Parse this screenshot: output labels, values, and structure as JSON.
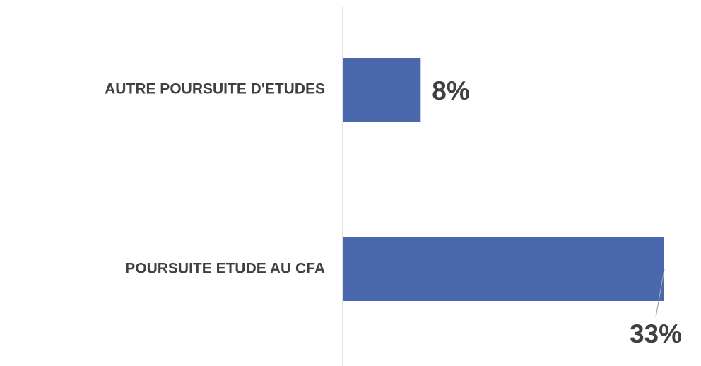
{
  "chart_data": {
    "type": "bar",
    "orientation": "horizontal",
    "categories": [
      "AUTRE POURSUITE D'ETUDES",
      "POURSUITE ETUDE AU CFA"
    ],
    "values": [
      8,
      33
    ],
    "value_labels": [
      "8%",
      "33%"
    ],
    "color": "#4a66ac"
  }
}
